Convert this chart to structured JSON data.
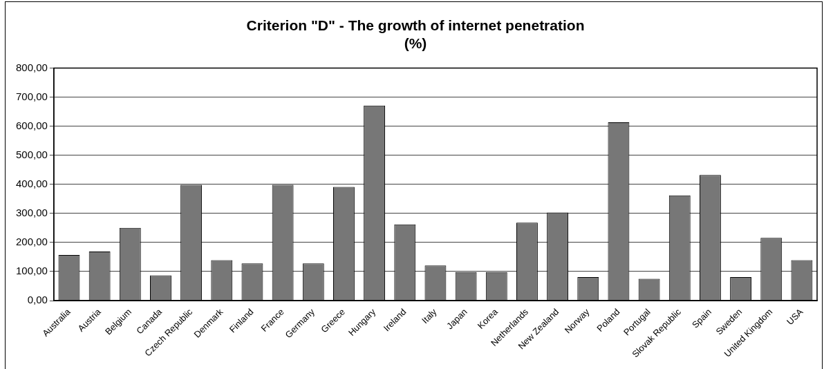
{
  "chart_data": {
    "type": "bar",
    "title": [
      "Criterion \"D\" - The growth of internet penetration",
      "(%)"
    ],
    "categories": [
      "Australia",
      "Austria",
      "Belgium",
      "Canada",
      "Czech Republic",
      "Denmark",
      "Finland",
      "France",
      "Germany",
      "Greece",
      "Hungary",
      "Ireland",
      "Italy",
      "Japan",
      "Korea",
      "Netherlands",
      "New Zealand",
      "Norway",
      "Poland",
      "Portugal",
      "Slovak Republic",
      "Spain",
      "Sweden",
      "United Kingdom",
      "USA"
    ],
    "values": [
      157,
      169,
      250,
      87,
      398,
      139,
      128,
      398,
      128,
      391,
      671,
      262,
      121,
      98,
      98,
      268,
      303,
      81,
      613,
      75,
      362,
      432,
      81,
      216,
      139
    ],
    "color": "#777777",
    "ylim": [
      0,
      800
    ],
    "yticks": [
      {
        "value": 0,
        "label": "0,00"
      },
      {
        "value": 100,
        "label": "100,00"
      },
      {
        "value": 200,
        "label": "200,00"
      },
      {
        "value": 300,
        "label": "300,00"
      },
      {
        "value": 400,
        "label": "400,00"
      },
      {
        "value": 500,
        "label": "500,00"
      },
      {
        "value": 600,
        "label": "600,00"
      },
      {
        "value": 700,
        "label": "700,00"
      },
      {
        "value": 800,
        "label": "800,00"
      }
    ],
    "grid": "y",
    "legend": false
  }
}
